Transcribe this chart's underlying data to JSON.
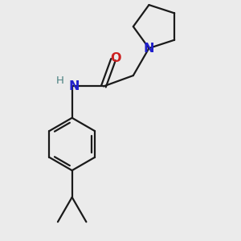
{
  "background_color": "#ebebeb",
  "bond_color": "#1a1a1a",
  "N_color": "#2020cc",
  "O_color": "#cc2020",
  "H_color": "#4a8080",
  "line_width": 1.6,
  "figsize": [
    3.0,
    3.0
  ],
  "dpi": 100,
  "xlim": [
    -1.8,
    2.2
  ],
  "ylim": [
    -3.2,
    2.2
  ]
}
